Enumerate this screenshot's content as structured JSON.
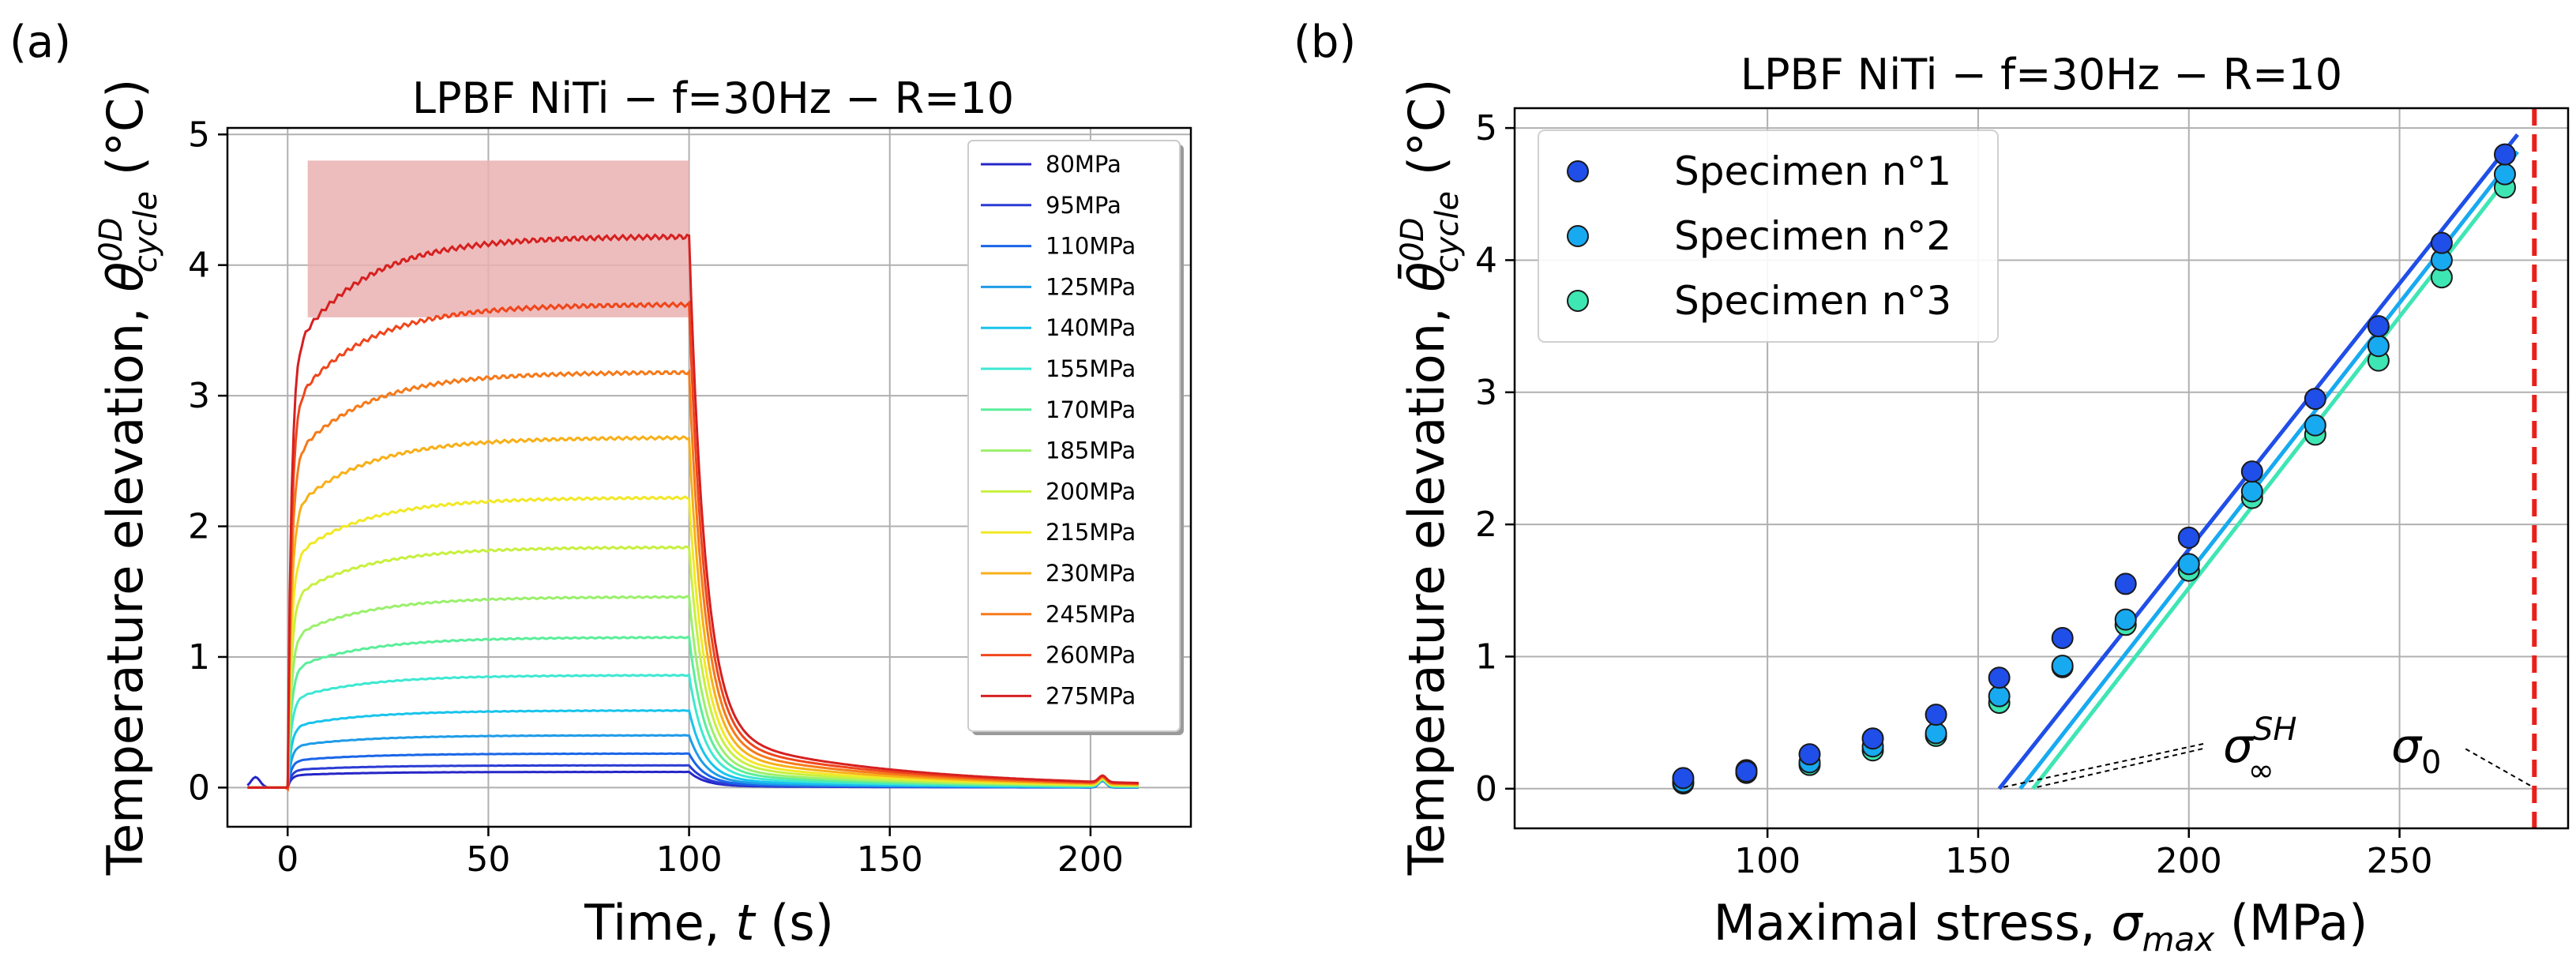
{
  "chart_data": [
    {
      "type": "line",
      "panel_label": "(a)",
      "title": "LPBF NiTi − f=30Hz − R=10",
      "xlabel": "Time, t (s)",
      "ylabel": "Temperature elevation, θ0Dcycle (°C)",
      "xlim": [
        -15,
        225
      ],
      "ylim": [
        -0.3,
        5.05
      ],
      "xticks": [
        0,
        50,
        100,
        150,
        200
      ],
      "yticks": [
        0,
        1,
        2,
        3,
        4,
        5
      ],
      "grid": true,
      "legend_position": "top-right",
      "shaded_band": {
        "x_start": 5,
        "x_end": 100,
        "y_low": 3.6,
        "y_high": 4.7,
        "color": "#eab1b1"
      },
      "series": [
        {
          "name": "80MPa",
          "plateau": 0.12,
          "color": "#2626c8"
        },
        {
          "name": "95MPa",
          "plateau": 0.17,
          "color": "#2b3cd4"
        },
        {
          "name": "110MPa",
          "plateau": 0.26,
          "color": "#1a66e8"
        },
        {
          "name": "125MPa",
          "plateau": 0.4,
          "color": "#1f9ce8"
        },
        {
          "name": "140MPa",
          "plateau": 0.59,
          "color": "#18c4ec"
        },
        {
          "name": "155MPa",
          "plateau": 0.86,
          "color": "#3de8d2"
        },
        {
          "name": "170MPa",
          "plateau": 1.15,
          "color": "#5aee9a"
        },
        {
          "name": "185MPa",
          "plateau": 1.46,
          "color": "#9af06c"
        },
        {
          "name": "200MPa",
          "plateau": 1.84,
          "color": "#c8f040"
        },
        {
          "name": "215MPa",
          "plateau": 2.22,
          "color": "#f2e826"
        },
        {
          "name": "230MPa",
          "plateau": 2.68,
          "color": "#f7b018"
        },
        {
          "name": "245MPa",
          "plateau": 3.18,
          "color": "#f57a1a"
        },
        {
          "name": "260MPa",
          "plateau": 3.7,
          "color": "#f0461c"
        },
        {
          "name": "275MPa",
          "plateau": 4.22,
          "color": "#d62020"
        }
      ]
    },
    {
      "type": "scatter",
      "panel_label": "(b)",
      "title": "LPBF NiTi − f=30Hz − R=10",
      "xlabel": "Maximal stress, σmax (MPa)",
      "ylabel": "Temperature elevation, θ̄0Dcycle (°C)",
      "xlim": [
        40,
        290
      ],
      "ylim": [
        -0.3,
        5.15
      ],
      "xticks": [
        100,
        150,
        200,
        250
      ],
      "yticks": [
        0,
        1,
        2,
        3,
        4,
        5
      ],
      "grid": true,
      "legend_position": "top-left",
      "x": [
        80,
        95,
        110,
        125,
        140,
        155,
        170,
        185,
        200,
        215,
        230,
        245,
        260,
        275
      ],
      "series": [
        {
          "name": "Specimen n°1",
          "color": "#1f4ee8",
          "values": [
            0.08,
            0.13,
            0.26,
            0.38,
            0.56,
            0.84,
            1.14,
            1.55,
            1.9,
            2.4,
            2.95,
            3.5,
            4.13,
            4.8
          ]
        },
        {
          "name": "Specimen n°2",
          "color": "#17aaf0",
          "values": [
            0.05,
            0.14,
            0.2,
            0.32,
            0.42,
            0.7,
            0.93,
            1.28,
            1.7,
            2.25,
            2.75,
            3.35,
            4.0,
            4.65
          ]
        },
        {
          "name": "Specimen n°3",
          "color": "#3ee6b4",
          "values": [
            0.04,
            0.12,
            0.18,
            0.29,
            0.4,
            0.65,
            0.92,
            1.24,
            1.65,
            2.2,
            2.68,
            3.24,
            3.87,
            4.55
          ]
        }
      ],
      "fit_lines": [
        {
          "name": "Specimen n°1 fit",
          "color": "#1f4ee8",
          "x": [
            155,
            278
          ],
          "y": [
            0,
            4.95
          ]
        },
        {
          "name": "Specimen n°2 fit",
          "color": "#17aaf0",
          "x": [
            160,
            278
          ],
          "y": [
            0,
            4.82
          ]
        },
        {
          "name": "Specimen n°3 fit",
          "color": "#3ee6b4",
          "x": [
            163,
            277
          ],
          "y": [
            0,
            4.68
          ]
        }
      ],
      "vertical_line": {
        "x": 282,
        "color": "#e8201c",
        "style": "dashed"
      },
      "annotations": [
        {
          "text_base": "σ",
          "text_sub": "∞",
          "text_sup": "SH"
        },
        {
          "text_base": "σ",
          "text_sub": "0",
          "text_sup": ""
        }
      ]
    }
  ]
}
